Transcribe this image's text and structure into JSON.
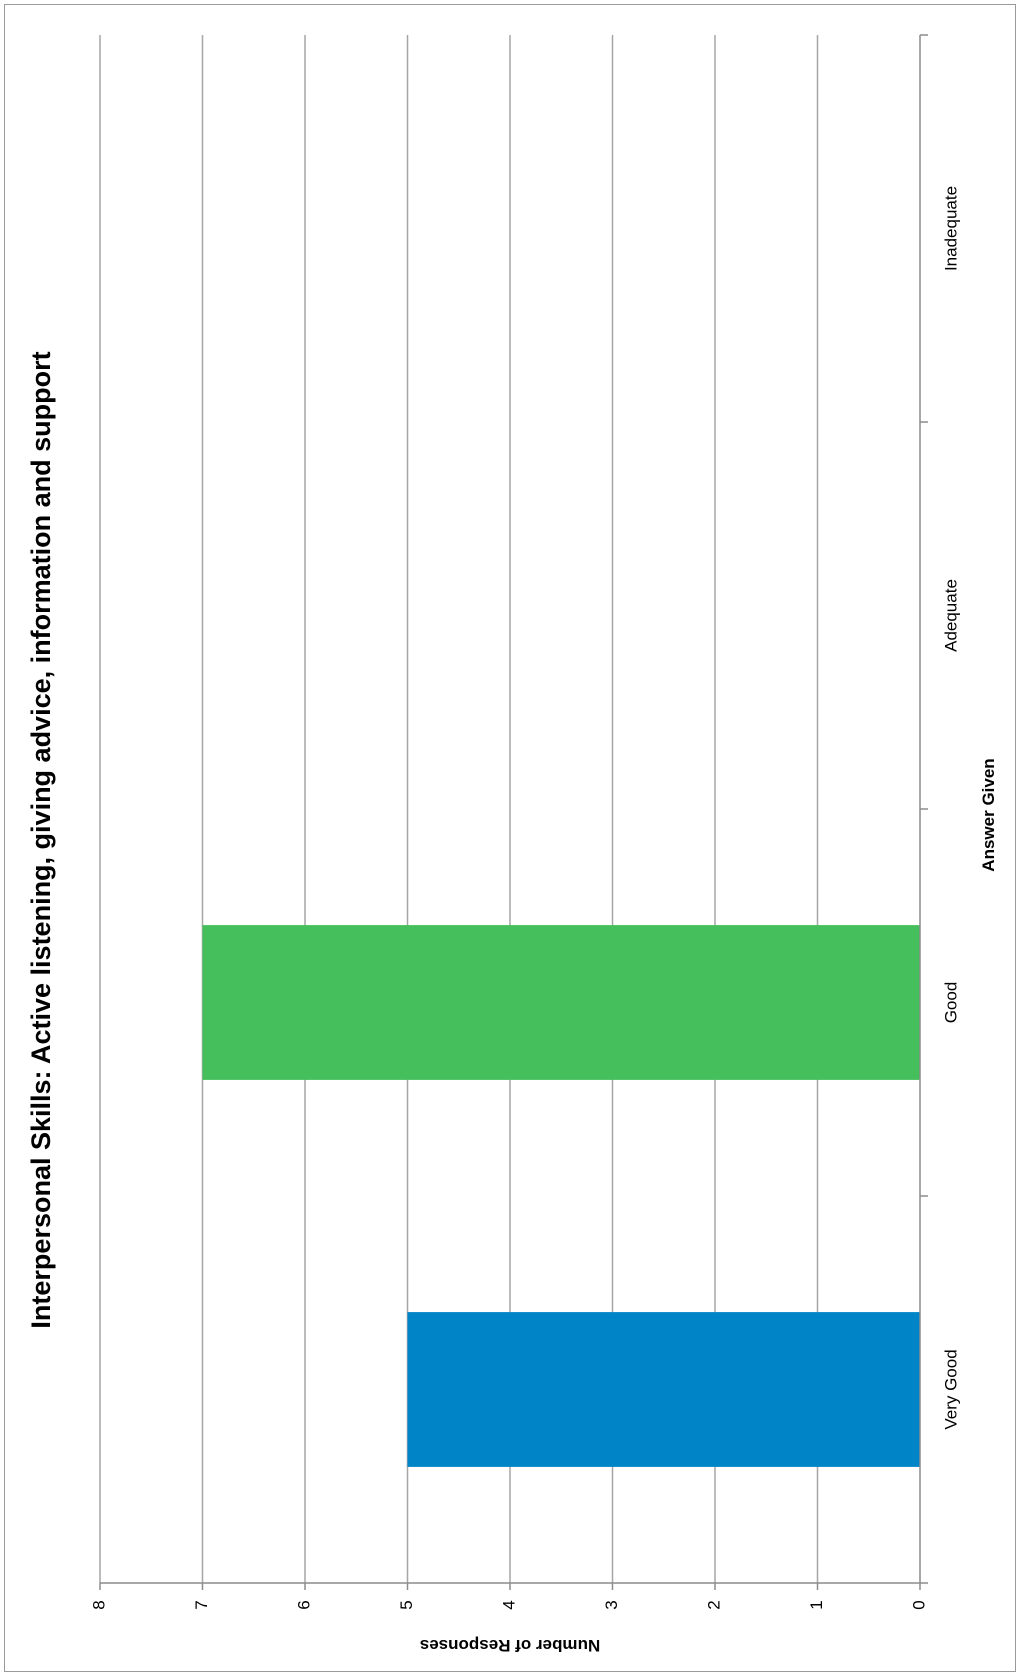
{
  "chart_data": {
    "type": "bar",
    "orientation": "rotated-90-clockwise",
    "title": "Interpersonal Skills: Active listening, giving advice, information and support",
    "xlabel": "Answer Given",
    "ylabel": "Number of Responses",
    "categories": [
      "Very Good",
      "Good",
      "Adequate",
      "Inadequate"
    ],
    "series": [
      {
        "values": [
          5,
          7,
          0,
          0
        ]
      }
    ],
    "bar_colors": [
      "#0084c8",
      "#45bf5c",
      "#45bf5c",
      "#45bf5c"
    ],
    "ylim": [
      0,
      8
    ],
    "yticks": [
      "0",
      "1",
      "2",
      "3",
      "4",
      "5",
      "6",
      "7",
      "8"
    ],
    "grid": true,
    "legend": "none"
  }
}
